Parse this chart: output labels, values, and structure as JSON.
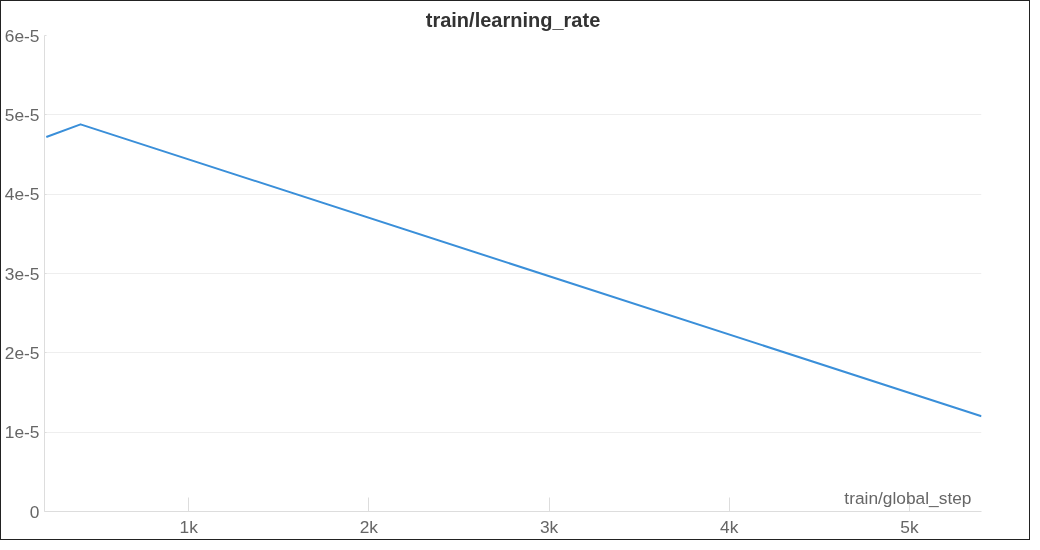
{
  "chart_data": {
    "type": "line",
    "title": "train/learning_rate",
    "xlabel": "train/global_step",
    "x": [
      210,
      400,
      5400
    ],
    "series": [
      {
        "color": "#3a8fd9",
        "values": [
          4.72e-05,
          4.88e-05,
          1.2e-05
        ]
      }
    ],
    "xlim": [
      200,
      5400
    ],
    "xticks": [
      {
        "value": 1000,
        "label": "1k"
      },
      {
        "value": 2000,
        "label": "2k"
      },
      {
        "value": 3000,
        "label": "3k"
      },
      {
        "value": 4000,
        "label": "4k"
      },
      {
        "value": 5000,
        "label": "5k"
      }
    ],
    "ylim": [
      0,
      6e-05
    ],
    "yticks": [
      0,
      {
        "value": 1e-05,
        "label": "1e-5"
      },
      {
        "value": 2e-05,
        "label": "2e-5"
      },
      {
        "value": 3e-05,
        "label": "3e-5"
      },
      {
        "value": 4e-05,
        "label": "4e-5"
      },
      {
        "value": 5e-05,
        "label": "5e-5"
      },
      {
        "value": 6e-05,
        "label": "6e-5"
      }
    ],
    "grid": "y",
    "line_style": "solid"
  }
}
